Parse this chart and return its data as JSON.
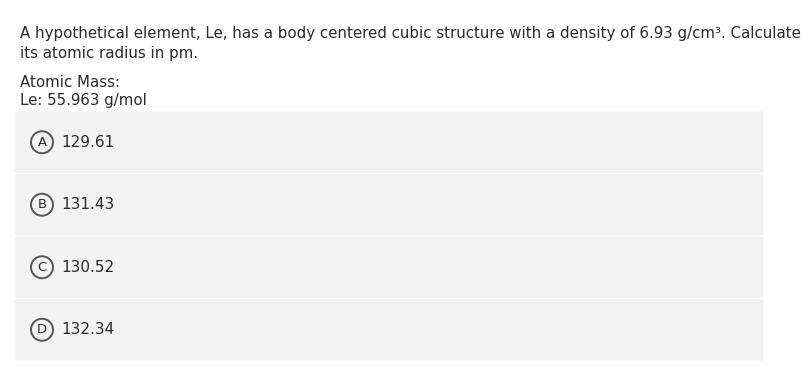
{
  "question_line1": "A hypothetical element, Le, has a body centered cubic structure with a density of 6.93 g/cm³. Calculate",
  "question_line2": "its atomic radius in pm.",
  "atomic_mass_label": "Atomic Mass:",
  "atomic_mass_value": "Le: 55.963 g/mol",
  "choices": [
    {
      "label": "A",
      "text": "129.61"
    },
    {
      "label": "B",
      "text": "131.43"
    },
    {
      "label": "C",
      "text": "130.52"
    },
    {
      "label": "D",
      "text": "132.34"
    }
  ],
  "bg_color": "#ffffff",
  "choice_bg_color": "#f2f2f2",
  "text_color": "#2a2a2a",
  "circle_edge_color": "#555555",
  "font_size_question": 10.8,
  "font_size_choices": 11.0,
  "font_size_atomic": 10.8
}
